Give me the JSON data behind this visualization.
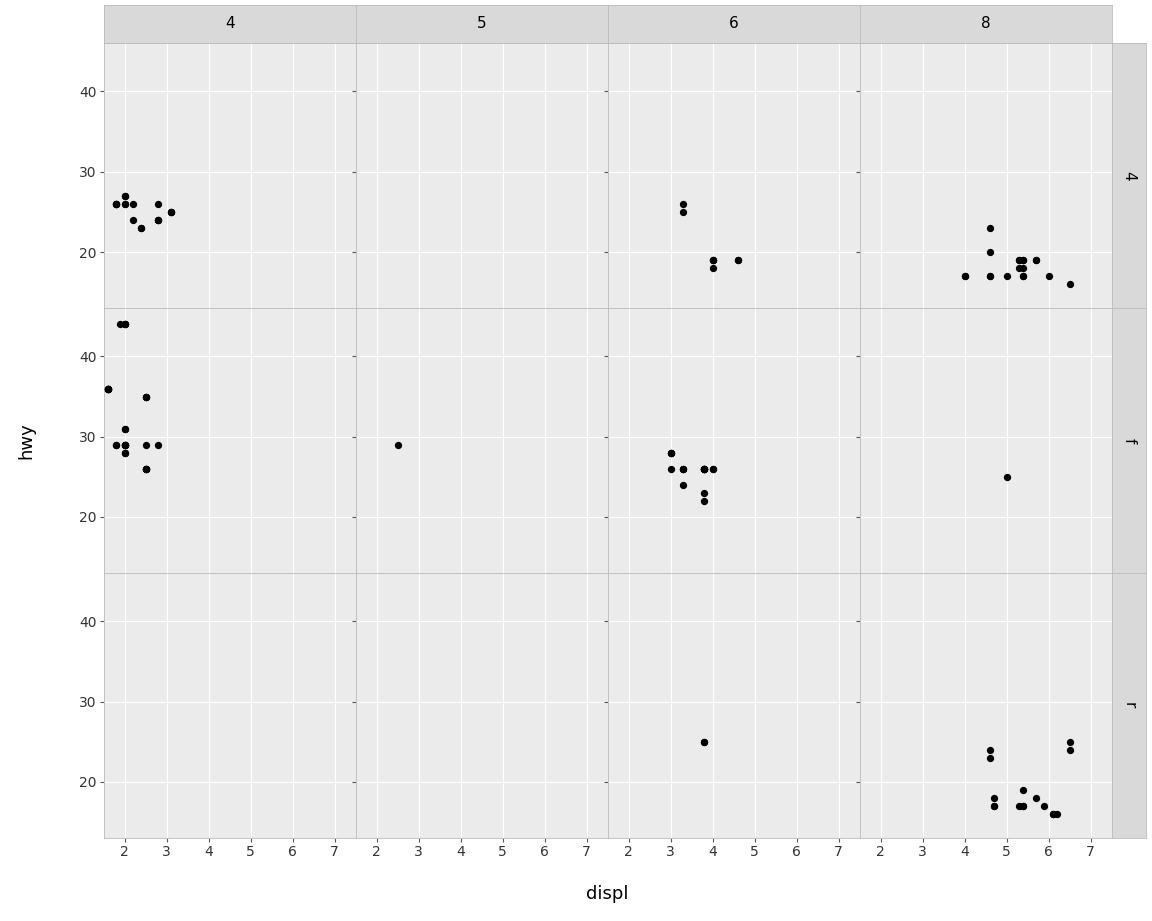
{
  "title_x": "displ",
  "title_y": "hwy",
  "col_labels": [
    "4",
    "5",
    "6",
    "8"
  ],
  "row_labels": [
    "4",
    "f",
    "r"
  ],
  "xlim": [
    1.5,
    7.5
  ],
  "ylim": [
    13,
    46
  ],
  "xticks": [
    2,
    3,
    4,
    5,
    6,
    7
  ],
  "yticks": [
    20,
    30,
    40
  ],
  "figure_bg": "#ffffff",
  "panel_background": "#ebebeb",
  "grid_color": "#ffffff",
  "strip_bg": "#d9d9d9",
  "dot_color": "#000000",
  "dot_size": 18,
  "data": {
    "4_4": {
      "displ": [
        1.8,
        1.8,
        2.0,
        2.0,
        2.8,
        2.8,
        3.1,
        1.8,
        1.8,
        2.0,
        2.0,
        2.8,
        2.8,
        3.1,
        3.1,
        2.2,
        2.2,
        2.4,
        2.4
      ],
      "hwy": [
        26,
        26,
        26,
        26,
        24,
        26,
        25,
        26,
        26,
        27,
        27,
        24,
        24,
        25,
        25,
        24,
        26,
        23,
        23
      ]
    },
    "5_4": {
      "displ": [],
      "hwy": []
    },
    "6_4": {
      "displ": [
        3.3,
        3.3,
        4.0,
        4.0,
        4.0,
        4.0,
        4.6,
        4.6
      ],
      "hwy": [
        26,
        25,
        19,
        19,
        19,
        18,
        19,
        19
      ]
    },
    "8_4": {
      "displ": [
        4.6,
        4.6,
        4.6,
        5.4,
        5.7,
        5.4,
        5.4,
        4.0,
        4.0,
        4.6,
        5.0,
        5.4,
        5.4,
        6.5,
        5.3,
        5.3,
        5.3,
        5.7,
        6.0
      ],
      "hwy": [
        23,
        20,
        17,
        17,
        19,
        19,
        19,
        17,
        17,
        17,
        17,
        18,
        17,
        16,
        19,
        18,
        19,
        19,
        17
      ]
    },
    "4_f": {
      "displ": [
        1.8,
        1.8,
        2.0,
        2.0,
        2.0,
        2.0,
        2.8,
        1.9,
        2.0,
        2.0,
        2.0,
        2.0,
        2.5,
        2.5,
        2.5,
        2.5,
        1.6,
        1.6,
        1.6,
        1.6,
        1.6,
        1.6,
        2.0,
        2.0,
        2.0,
        2.0,
        2.5,
        2.5,
        2.5,
        2.5,
        2.5
      ],
      "hwy": [
        29,
        29,
        31,
        31,
        28,
        28,
        29,
        44,
        44,
        44,
        44,
        29,
        35,
        35,
        35,
        29,
        36,
        36,
        36,
        36,
        36,
        36,
        29,
        29,
        29,
        29,
        26,
        26,
        26,
        26,
        26
      ]
    },
    "5_f": {
      "displ": [
        2.5
      ],
      "hwy": [
        29
      ]
    },
    "6_f": {
      "displ": [
        3.0,
        3.0,
        3.3,
        3.8,
        3.8,
        3.8,
        4.0,
        3.0,
        3.0,
        3.3,
        3.3,
        3.8,
        3.8,
        3.8,
        4.0,
        3.3,
        3.8,
        3.8
      ],
      "hwy": [
        28,
        28,
        26,
        26,
        26,
        26,
        26,
        26,
        28,
        26,
        26,
        26,
        26,
        26,
        26,
        24,
        23,
        22
      ]
    },
    "8_f": {
      "displ": [
        5.0
      ],
      "hwy": [
        25
      ]
    },
    "4_r": {
      "displ": [],
      "hwy": []
    },
    "5_r": {
      "displ": [],
      "hwy": []
    },
    "6_r": {
      "displ": [
        3.8,
        3.8
      ],
      "hwy": [
        25,
        25
      ]
    },
    "8_r": {
      "displ": [
        4.6,
        4.6,
        5.4,
        5.4,
        5.4,
        4.7,
        4.7,
        5.7,
        5.9,
        4.7,
        6.1,
        6.1,
        6.2,
        5.3,
        6.5,
        6.5
      ],
      "hwy": [
        23,
        24,
        19,
        17,
        17,
        17,
        18,
        18,
        17,
        17,
        16,
        16,
        16,
        17,
        25,
        24
      ]
    }
  }
}
